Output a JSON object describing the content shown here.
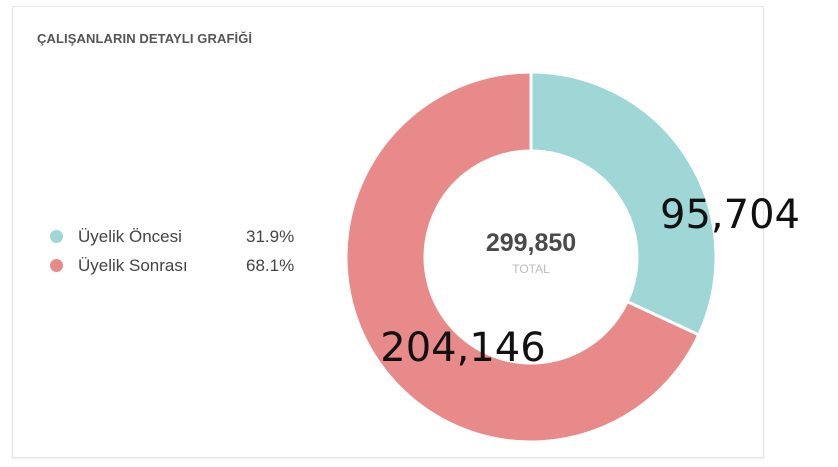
{
  "card": {
    "title": "ÇALIŞANLARIN DETAYLI GRAFİĞİ"
  },
  "chart_data": {
    "type": "pie",
    "title": "ÇALIŞANLARIN DETAYLI GRAFİĞİ",
    "donut": true,
    "total": "299,850",
    "total_caption": "TOTAL",
    "categories": [
      "Üyelik Öncesi",
      "Üyelik Sonrası"
    ],
    "values": [
      95704,
      204146
    ],
    "value_labels": [
      "95,704",
      "204,146"
    ],
    "percent_labels": [
      "31.9%",
      "68.1%"
    ],
    "colors": [
      "#9fd6d6",
      "#e88a8a"
    ],
    "legend_position": "left"
  }
}
